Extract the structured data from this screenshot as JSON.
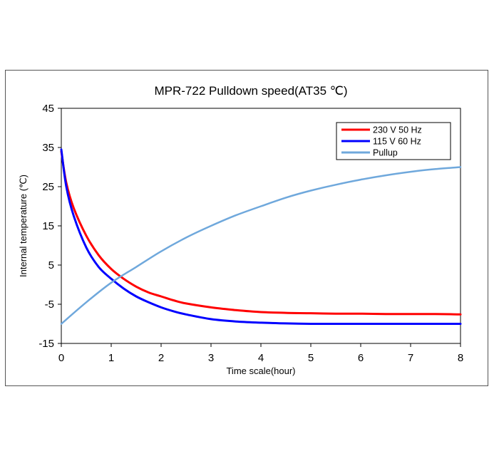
{
  "chart_data": {
    "type": "line",
    "title": "MPR-722   Pulldown speed(AT35 ℃)",
    "xlabel": "Time scale(hour)",
    "ylabel": "Internal temperature (℃)",
    "xlim": [
      0,
      8
    ],
    "ylim": [
      -15,
      45
    ],
    "xticks": [
      0,
      1,
      2,
      3,
      4,
      5,
      6,
      7,
      8
    ],
    "yticks": [
      45,
      35,
      25,
      15,
      5,
      -5,
      -15
    ],
    "legend_position": "top-right",
    "series": [
      {
        "name": "230 V 50 Hz",
        "color": "#ff0000",
        "x": [
          0,
          0.1,
          0.25,
          0.5,
          0.75,
          1,
          1.25,
          1.5,
          1.75,
          2,
          2.25,
          2.5,
          3,
          3.5,
          4,
          4.5,
          5,
          5.5,
          6,
          6.5,
          7,
          7.5,
          8
        ],
        "y": [
          34,
          26,
          19.5,
          12.5,
          7.5,
          4,
          1.5,
          -0.5,
          -2,
          -3,
          -4,
          -4.8,
          -5.8,
          -6.5,
          -7,
          -7.2,
          -7.3,
          -7.4,
          -7.4,
          -7.5,
          -7.5,
          -7.5,
          -7.6
        ]
      },
      {
        "name": "115 V 60 Hz",
        "color": "#0000ff",
        "x": [
          0,
          0.1,
          0.25,
          0.5,
          0.75,
          1,
          1.25,
          1.5,
          1.75,
          2,
          2.25,
          2.5,
          3,
          3.5,
          4,
          4.5,
          5,
          5.5,
          6,
          6.5,
          7,
          7.5,
          8
        ],
        "y": [
          34.5,
          25,
          17.5,
          9.5,
          4.5,
          1.5,
          -1,
          -3,
          -4.5,
          -5.8,
          -6.8,
          -7.6,
          -8.8,
          -9.4,
          -9.7,
          -9.9,
          -10,
          -10,
          -10,
          -10,
          -10,
          -10,
          -10
        ]
      },
      {
        "name": "Pullup",
        "color": "#6fa8dc",
        "x": [
          0,
          0.5,
          1,
          1.5,
          2,
          2.5,
          3,
          3.5,
          4,
          4.5,
          5,
          5.5,
          6,
          6.5,
          7,
          7.5,
          8
        ],
        "y": [
          -10,
          -4.5,
          0.5,
          4.5,
          8.5,
          12,
          15,
          17.7,
          20,
          22.2,
          24,
          25.5,
          26.8,
          27.9,
          28.8,
          29.5,
          30
        ]
      }
    ]
  }
}
